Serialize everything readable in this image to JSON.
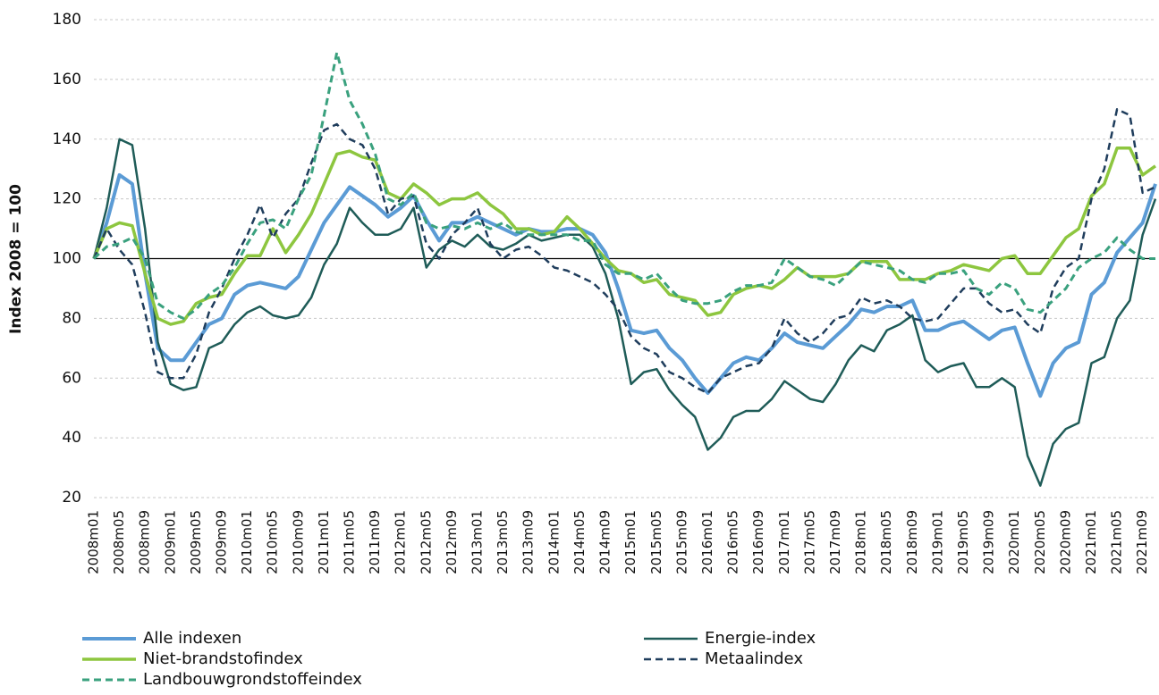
{
  "chart_data": {
    "type": "line",
    "ylabel": "Index 2008 = 100",
    "categories": [
      "2008m01",
      null,
      "2008m05",
      null,
      "2008m09",
      null,
      "2009m01",
      null,
      "2009m05",
      null,
      "2009m09",
      null,
      "2010m01",
      null,
      "2010m05",
      null,
      "2010m09",
      null,
      "2011m01",
      null,
      "2011m05",
      null,
      "2011m09",
      null,
      "2012m01",
      null,
      "2012m05",
      null,
      "2012m09",
      null,
      "2013m01",
      null,
      "2013m05",
      null,
      "2013m09",
      null,
      "2014m01",
      null,
      "2014m05",
      null,
      "2014m09",
      null,
      "2015m01",
      null,
      "2015m05",
      null,
      "2015m09",
      null,
      "2016m01",
      null,
      "2016m05",
      null,
      "2016m09",
      null,
      "2017m01",
      null,
      "2017m05",
      null,
      "2017m09",
      null,
      "2018m01",
      null,
      "2018m05",
      null,
      "2018m09",
      null,
      "2019m01",
      null,
      "2019m05",
      null,
      "2019m09",
      null,
      "2020m01",
      null,
      "2020m05",
      null,
      "2020m09",
      null,
      "2021m01",
      null,
      "2021m05",
      null,
      "2021m09",
      null
    ],
    "series": [
      {
        "name": "Alle indexen",
        "color": "#5b9bd5",
        "width": 4,
        "dashed": false,
        "values": [
          100,
          112,
          128,
          125,
          95,
          70,
          66,
          66,
          72,
          78,
          80,
          88,
          91,
          92,
          91,
          90,
          94,
          103,
          112,
          118,
          124,
          121,
          118,
          114,
          117,
          121,
          113,
          106,
          112,
          112,
          114,
          112,
          110,
          108,
          110,
          109,
          109,
          110,
          110,
          108,
          102,
          90,
          76,
          75,
          76,
          70,
          66,
          60,
          55,
          60,
          65,
          67,
          66,
          70,
          75,
          72,
          71,
          70,
          74,
          78,
          83,
          82,
          84,
          84,
          86,
          76,
          76,
          78,
          79,
          76,
          73,
          76,
          77,
          65,
          54,
          65,
          70,
          72,
          88,
          92,
          102,
          107,
          112,
          125
        ]
      },
      {
        "name": "Energie-index",
        "color": "#1f5c58",
        "width": 2.5,
        "dashed": false,
        "values": [
          100,
          117,
          140,
          138,
          110,
          72,
          58,
          56,
          57,
          70,
          72,
          78,
          82,
          84,
          81,
          80,
          81,
          87,
          98,
          105,
          117,
          112,
          108,
          108,
          110,
          117,
          97,
          103,
          106,
          104,
          108,
          104,
          103,
          105,
          108,
          106,
          107,
          108,
          108,
          104,
          95,
          80,
          58,
          62,
          63,
          56,
          51,
          47,
          36,
          40,
          47,
          49,
          49,
          53,
          59,
          56,
          53,
          52,
          58,
          66,
          71,
          69,
          76,
          78,
          81,
          66,
          62,
          64,
          65,
          57,
          57,
          60,
          57,
          34,
          24,
          38,
          43,
          45,
          65,
          67,
          80,
          86,
          108,
          120
        ]
      },
      {
        "name": "Niet-brandstofindex",
        "color": "#8dc63f",
        "width": 3.5,
        "dashed": false,
        "values": [
          100,
          110,
          112,
          111,
          95,
          80,
          78,
          79,
          85,
          87,
          88,
          95,
          101,
          101,
          110,
          102,
          108,
          115,
          125,
          135,
          136,
          134,
          133,
          122,
          120,
          125,
          122,
          118,
          120,
          120,
          122,
          118,
          115,
          110,
          110,
          108,
          109,
          114,
          110,
          105,
          100,
          96,
          95,
          92,
          93,
          88,
          87,
          86,
          81,
          82,
          88,
          90,
          91,
          90,
          93,
          97,
          94,
          94,
          94,
          95,
          99,
          99,
          99,
          93,
          93,
          93,
          95,
          96,
          98,
          97,
          96,
          100,
          101,
          95,
          95,
          101,
          107,
          110,
          121,
          125,
          137,
          137,
          128,
          131
        ]
      },
      {
        "name": "Metaalindex",
        "color": "#1f3d5c",
        "width": 2.5,
        "dashed": true,
        "values": [
          100,
          110,
          103,
          98,
          82,
          62,
          60,
          60,
          68,
          82,
          90,
          100,
          108,
          118,
          107,
          115,
          120,
          132,
          143,
          145,
          140,
          138,
          130,
          115,
          120,
          121,
          105,
          100,
          108,
          112,
          117,
          105,
          100,
          103,
          104,
          101,
          97,
          96,
          94,
          92,
          88,
          83,
          74,
          70,
          68,
          62,
          60,
          57,
          55,
          60,
          62,
          64,
          65,
          70,
          80,
          75,
          72,
          75,
          80,
          81,
          87,
          85,
          86,
          84,
          80,
          79,
          80,
          85,
          90,
          90,
          85,
          82,
          83,
          78,
          75,
          90,
          97,
          100,
          120,
          130,
          150,
          148,
          122,
          124
        ]
      },
      {
        "name": "Landbouwgrondstoffeindex",
        "color": "#3aa17e",
        "width": 3,
        "dashed": true,
        "values": [
          100,
          104,
          105,
          107,
          100,
          85,
          82,
          80,
          83,
          88,
          91,
          97,
          105,
          112,
          113,
          110,
          120,
          128,
          148,
          169,
          153,
          145,
          135,
          120,
          118,
          122,
          112,
          110,
          111,
          110,
          112,
          110,
          112,
          109,
          108,
          108,
          108,
          108,
          106,
          106,
          98,
          95,
          95,
          93,
          95,
          90,
          86,
          85,
          85,
          86,
          89,
          91,
          91,
          92,
          100,
          97,
          94,
          93,
          91,
          95,
          99,
          98,
          97,
          96,
          93,
          92,
          95,
          95,
          96,
          90,
          88,
          92,
          90,
          83,
          82,
          86,
          90,
          97,
          100,
          102,
          107,
          103,
          100,
          100
        ]
      }
    ],
    "ylim": [
      20,
      180
    ],
    "yticks": [
      20,
      40,
      60,
      80,
      100,
      120,
      140,
      160,
      180
    ],
    "grid": true,
    "reference_line": 100
  }
}
